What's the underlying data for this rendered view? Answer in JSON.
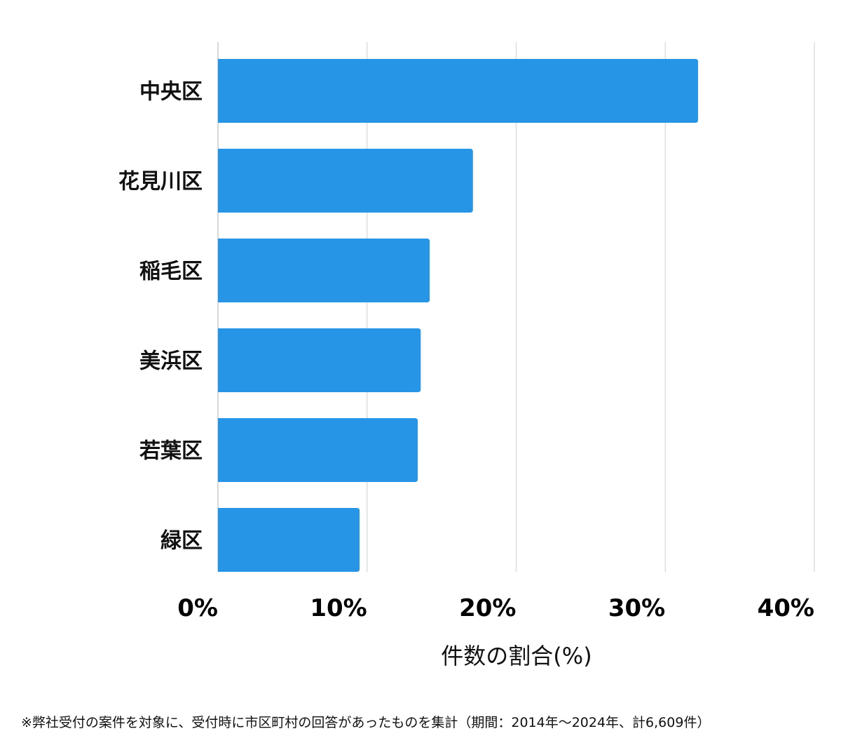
{
  "colors": {
    "bar": "#2695e6",
    "grid": "#d6d6d6",
    "text": "#111111"
  },
  "chart_data": {
    "type": "bar",
    "orientation": "horizontal",
    "categories": [
      "中央区",
      "花見川区",
      "稲毛区",
      "美浜区",
      "若葉区",
      "緑区"
    ],
    "values": [
      32.2,
      17.1,
      14.2,
      13.6,
      13.4,
      9.5
    ],
    "xlabel": "件数の割合(%)",
    "xlim": [
      0,
      40
    ],
    "xticks": [
      0,
      10,
      20,
      30,
      40
    ],
    "xtick_labels": [
      "0%",
      "10%",
      "20%",
      "30%",
      "40%"
    ],
    "grid": true,
    "legend": "none"
  },
  "footnote": "※弊社受付の案件を対象に、受付時に市区町村の回答があったものを集計（期間：2014年～2024年、計6,609件）"
}
